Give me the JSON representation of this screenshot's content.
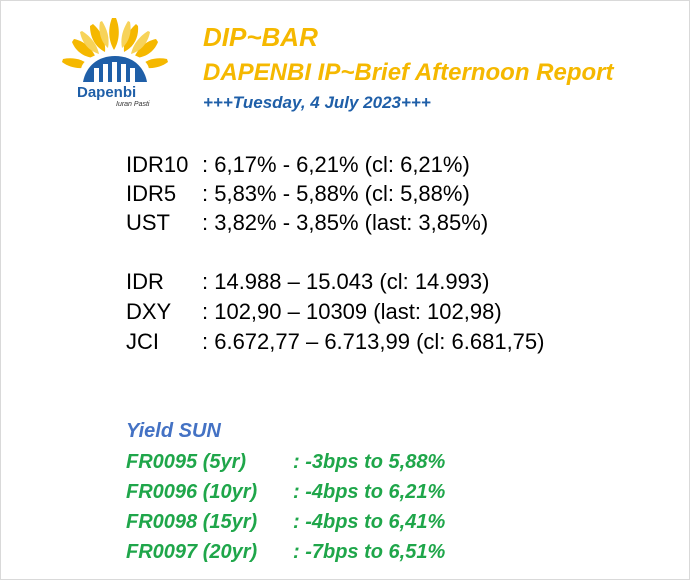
{
  "logo": {
    "name": "Dapenbi",
    "tagline": "Iuran Pasti",
    "colors": {
      "petals": "#f5b800",
      "building": "#1f5fa8"
    }
  },
  "header": {
    "title": "DIP~BAR",
    "subtitle": "DAPENBI IP~Brief Afternoon Report",
    "date": "+++Tuesday, 4 July 2023+++"
  },
  "rates": [
    {
      "label": "IDR10",
      "value": ": 6,17% - 6,21% (cl: 6,21%)"
    },
    {
      "label": "IDR5",
      "value": ": 5,83% - 5,88% (cl: 5,88%)"
    },
    {
      "label": "UST",
      "value": ": 3,82% - 3,85% (last: 3,85%)"
    }
  ],
  "markets": [
    {
      "label": "IDR",
      "value": ": 14.988 – 15.043 (cl: 14.993)"
    },
    {
      "label": "DXY",
      "value": ": 102,90 – 10309 (last: 102,98)"
    },
    {
      "label": "JCI",
      "value": ": 6.672,77 – 6.713,99 (cl: 6.681,75)"
    }
  ],
  "yield": {
    "heading": "Yield SUN",
    "rows": [
      {
        "label": "FR0095 (5yr)",
        "value": ": -3bps to 5,88%"
      },
      {
        "label": "FR0096 (10yr)",
        "value": ": -4bps to 6,21%"
      },
      {
        "label": "FR0098 (15yr)",
        "value": ": -4bps to 6,41%"
      },
      {
        "label": "FR0097 (20yr)",
        "value": ": -7bps to 6,51%"
      }
    ]
  }
}
